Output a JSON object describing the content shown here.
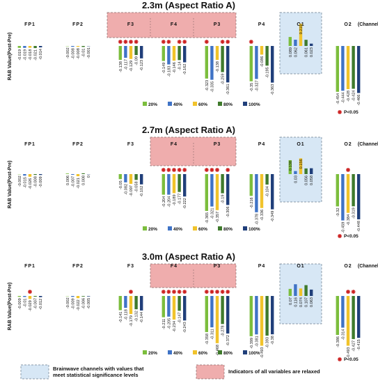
{
  "colors": {
    "levels": [
      "#7cbe3d",
      "#3f73c6",
      "#f1c32b",
      "#3f7a2c",
      "#203f7a"
    ],
    "relaxed_box": "#efadad",
    "significant_box": "#d7e7f5",
    "marker": "#cc1f1f"
  },
  "chart_data": [
    {
      "type": "bar",
      "title": "2.3m (Aspect Ratio A)",
      "ylabel": "RAB Value(Post-Pre)",
      "categories": [
        "FP1",
        "FP2",
        "F3",
        "F4",
        "P3",
        "P4",
        "O1",
        "O2"
      ],
      "last_category_note": "(Channel)",
      "series": [
        {
          "name": "20%",
          "values": [
            -0.019,
            -0.002,
            -0.138,
            -0.149,
            -0.323,
            -0.35,
            0.089,
            -0.454
          ]
        },
        {
          "name": "40%",
          "values": [
            -0.019,
            -0.008,
            -0.117,
            -0.183,
            -0.335,
            -0.327,
            0.062,
            -0.444
          ]
        },
        {
          "name": "60%",
          "values": [
            -0.018,
            -0.008,
            -0.129,
            -0.146,
            -0.138,
            -0.086,
            0.219,
            -0.428
          ]
        },
        {
          "name": "80%",
          "values": [
            -0.021,
            -0.01,
            -0.09,
            -0.14,
            -0.259,
            -0.195,
            0.061,
            -0.424
          ]
        },
        {
          "name": "100%",
          "values": [
            -0.014,
            -0.001,
            -0.123,
            -0.162,
            -0.361,
            -0.363,
            0.023,
            -0.466
          ]
        }
      ],
      "relaxed_channels": [
        "F3",
        "F4",
        "P3"
      ],
      "significant_channels": [
        "O1"
      ],
      "significance_markers": [
        {
          "channel": "F3",
          "levels": [
            "20%",
            "40%",
            "60%",
            "80%"
          ]
        },
        {
          "channel": "F4",
          "levels": [
            "20%",
            "40%",
            "80%",
            "100%"
          ]
        },
        {
          "channel": "P3",
          "levels": [
            "20%",
            "80%",
            "100%"
          ]
        },
        {
          "channel": "P4",
          "levels": [
            "20%"
          ]
        }
      ],
      "legend": {
        "position": "bottom-center",
        "entries": [
          "20%",
          "40%",
          "60%",
          "80%",
          "100%"
        ]
      },
      "significance_note": "P<0.05",
      "grid": false
    },
    {
      "type": "bar",
      "title": "2.7m (Aspect Ratio A)",
      "ylabel": "RAB Value(Post-Pre)",
      "categories": [
        "FP1",
        "FP2",
        "F3",
        "F4",
        "P3",
        "P4",
        "O1",
        "O2"
      ],
      "last_category_note": "(Channel)",
      "series": [
        {
          "name": "20%",
          "values": [
            -0.002,
            0.006,
            -0.05,
            -0.204,
            -0.365,
            -0.216,
            0.138,
            -0.32
          ]
        },
        {
          "name": "40%",
          "values": [
            -0.015,
            -0.007,
            -0.082,
            -0.204,
            -0.321,
            -0.378,
            0.03,
            -0.459
          ]
        },
        {
          "name": "60%",
          "values": [
            -0.026,
            -0.021,
            -0.097,
            -0.189,
            -0.357,
            -0.336,
            0.156,
            -0.384
          ]
        },
        {
          "name": "80%",
          "values": [
            -0.008,
            0.008,
            -0.058,
            -0.177,
            -0.19,
            -0.104,
            0.056,
            -0.319
          ]
        },
        {
          "name": "100%",
          "values": [
            -0.009,
            0,
            -0.102,
            -0.222,
            -0.306,
            -0.349,
            0.058,
            -0.448
          ]
        }
      ],
      "relaxed_channels": [
        "F4",
        "P3"
      ],
      "significant_channels": [
        "O1"
      ],
      "significance_markers": [
        {
          "channel": "F4",
          "levels": [
            "20%",
            "40%",
            "60%",
            "80%",
            "100%"
          ]
        },
        {
          "channel": "P3",
          "levels": [
            "20%",
            "40%",
            "60%",
            "100%"
          ]
        },
        {
          "channel": "O2",
          "levels": [
            "60%"
          ]
        }
      ],
      "legend": {
        "position": "bottom-center",
        "entries": [
          "20%",
          "40%",
          "60%",
          "80%",
          "100%"
        ]
      },
      "significance_note": "P<0.05",
      "grid": false
    },
    {
      "type": "bar",
      "title": "3.0m (Aspect Ratio A)",
      "ylabel": "RAB Value(Post-Pre)",
      "categories": [
        "FP1",
        "FP2",
        "F3",
        "F4",
        "P3",
        "P4",
        "O1",
        "O2"
      ],
      "last_category_note": "(Channel)",
      "series": [
        {
          "name": "20%",
          "values": [
            -0.009,
            -0.002,
            -0.141,
            -0.211,
            -0.358,
            -0.399,
            0.07,
            -0.386
          ]
        },
        {
          "name": "40%",
          "values": [
            -0.01,
            -0.009,
            -0.118,
            -0.205,
            -0.311,
            -0.381,
            0.116,
            -0.314
          ]
        },
        {
          "name": "60%",
          "values": [
            -0.029,
            -0.022,
            -0.179,
            -0.234,
            -0.468,
            -0.493,
            0.074,
            -0.493
          ]
        },
        {
          "name": "80%",
          "values": [
            -0.007,
            -0.006,
            -0.132,
            -0.147,
            -0.278,
            -0.393,
            0.107,
            -0.427
          ]
        },
        {
          "name": "100%",
          "values": [
            -0.012,
            -0.005,
            -0.144,
            -0.243,
            -0.372,
            -0.38,
            0.063,
            -0.415
          ]
        }
      ],
      "relaxed_channels": [
        "F4",
        "P3"
      ],
      "significant_channels": [
        "O1"
      ],
      "significance_markers": [
        {
          "channel": "FP1",
          "levels": [
            "60%"
          ]
        },
        {
          "channel": "F3",
          "levels": [
            "60%"
          ]
        },
        {
          "channel": "F4",
          "levels": [
            "20%",
            "40%",
            "60%",
            "80%",
            "100%"
          ]
        },
        {
          "channel": "P3",
          "levels": [
            "20%",
            "40%",
            "60%",
            "80%",
            "100%"
          ]
        },
        {
          "channel": "O2",
          "levels": [
            "60%",
            "80%"
          ]
        }
      ],
      "legend": {
        "position": "bottom-center",
        "entries": [
          "20%",
          "40%",
          "60%",
          "80%",
          "100%"
        ]
      },
      "significance_note": "P<0.05",
      "grid": false
    }
  ],
  "footer_legend": {
    "significant_label": "Brainwave channels with values that meet statistical significance levels",
    "relaxed_label": "Indicators of all variables are relaxed"
  }
}
